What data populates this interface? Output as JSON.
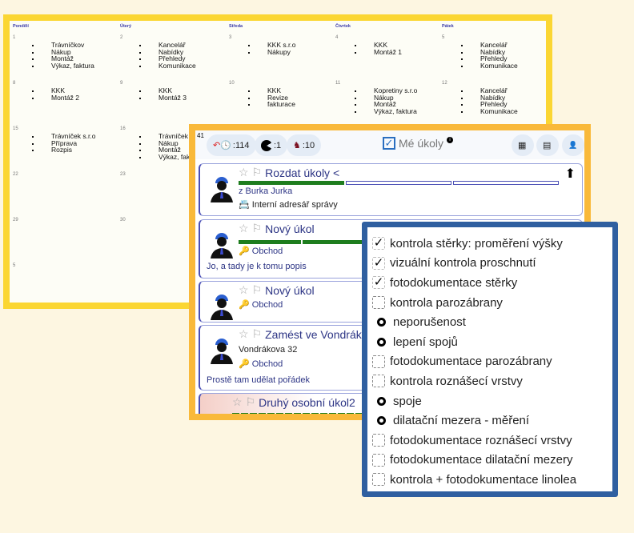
{
  "calendar": {
    "day_headers": [
      "Pondělí",
      "Úterý",
      "Středa",
      "Čtvrtek",
      "Pátek"
    ],
    "weeks": [
      [
        {
          "num": "1",
          "items": [
            "Trávníčkov",
            "Nákup",
            "Montáž",
            "Výkaz, faktura"
          ]
        },
        {
          "num": "2",
          "items": [
            "Kancelář",
            "Nabídky",
            "Přehledy",
            "Komunikace"
          ]
        },
        {
          "num": "3",
          "items": [
            "KKK s.r.o",
            "Nákupy"
          ]
        },
        {
          "num": "4",
          "items": [
            "KKK",
            "Montáž 1"
          ]
        },
        {
          "num": "5",
          "items": [
            "Kancelář",
            "Nabídky",
            "Přehledy",
            "Komunikace"
          ]
        }
      ],
      [
        {
          "num": "8",
          "items": [
            "KKK",
            "Montáž 2"
          ]
        },
        {
          "num": "9",
          "items": [
            "KKK",
            "Montáž 3"
          ]
        },
        {
          "num": "10",
          "items": [
            "KKK",
            "Revize",
            "fakturace"
          ]
        },
        {
          "num": "11",
          "items": [
            "Kopretiny s.r.o",
            "Nákup",
            "Montáž",
            "Výkaz, faktura"
          ]
        },
        {
          "num": "12",
          "items": [
            "Kancelář",
            "Nabídky",
            "Přehledy",
            "Komunikace"
          ]
        }
      ],
      [
        {
          "num": "15",
          "items": [
            "Trávníček s.r.o",
            "Příprava",
            "Rozpis"
          ]
        },
        {
          "num": "16",
          "items": [
            "Trávníček s",
            "Nákup",
            "Montáž",
            "Výkaz, fakt"
          ]
        }
      ],
      [
        {
          "num": "22",
          "items": []
        },
        {
          "num": "23",
          "items": []
        }
      ],
      [
        {
          "num": "29",
          "items": []
        },
        {
          "num": "30",
          "items": []
        }
      ],
      [
        {
          "num": "5",
          "items": []
        }
      ]
    ]
  },
  "tasks": {
    "count": "41",
    "pills": [
      {
        "icon": "overdue-clock-icon",
        "value": ":114"
      },
      {
        "icon": "pacman-icon",
        "value": ":1"
      },
      {
        "icon": "horse-rider-icon",
        "value": ":10"
      }
    ],
    "title": "Mé úkoly",
    "cards": [
      {
        "title": "Rozdat úkoly <",
        "from": "z Burka Jurka",
        "link": "Interní adresář správy"
      },
      {
        "title": "Nový úkol",
        "category": "Obchod",
        "desc": "Jo, a tady je k tomu popis"
      },
      {
        "title": "Nový úkol",
        "category": "Obchod"
      },
      {
        "title": "Zamést ve Vondrákově",
        "address": "Vondrákova 32",
        "category": "Obchod",
        "desc": "Prostě tam udělat pořádek"
      },
      {
        "title": "Druhý osobní úkol2"
      }
    ],
    "colors": {
      "accent": "#2d3585",
      "progress": "#1e7d1e"
    }
  },
  "checklist": [
    {
      "type": "checked",
      "label": "kontrola stěrky: proměření výšky"
    },
    {
      "type": "checked",
      "label": "vizuální kontrola proschnutí"
    },
    {
      "type": "checked",
      "label": "fotodokumentace stěrky"
    },
    {
      "type": "unchecked",
      "label": "kontrola parozábrany"
    },
    {
      "type": "bullet",
      "label": "neporušenost"
    },
    {
      "type": "bullet",
      "label": "lepení spojů"
    },
    {
      "type": "unchecked",
      "label": "fotodokumentace parozábrany"
    },
    {
      "type": "unchecked",
      "label": "kontrola roznášecí vrstvy"
    },
    {
      "type": "bullet",
      "label": "spoje"
    },
    {
      "type": "bullet",
      "label": "dilatační mezera - měření"
    },
    {
      "type": "unchecked",
      "label": "fotodokumentace roznášecí vrstvy"
    },
    {
      "type": "unchecked",
      "label": "fotodokumentace dilatační mezery"
    },
    {
      "type": "unchecked",
      "label": "kontrola + fotodokumentace linolea"
    }
  ]
}
